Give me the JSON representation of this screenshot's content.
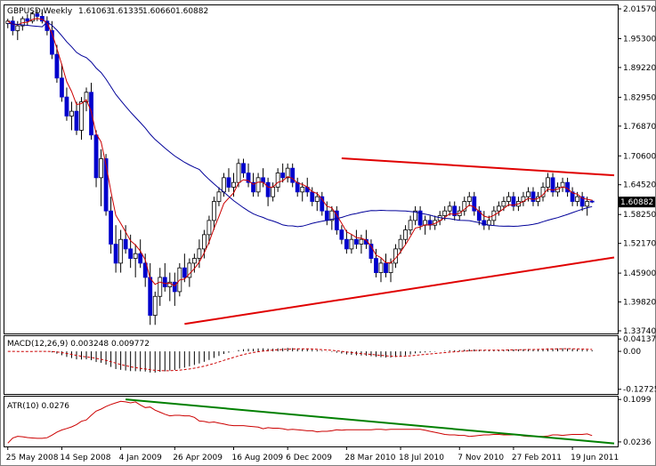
{
  "chart_data": [
    {
      "type": "candlestick",
      "header": {
        "symbol": "GBPUSD,Weekly",
        "open": "1.61063",
        "high": "1.61335",
        "low": "1.60660",
        "close": "1.60882"
      },
      "y_ticks": [
        "2.01570",
        "1.95300",
        "1.89220",
        "1.82950",
        "1.76870",
        "1.70600",
        "1.64520",
        "1.58250",
        "1.52170",
        "1.45900",
        "1.39820",
        "1.33740"
      ],
      "ylim": [
        1.3374,
        2.0157
      ],
      "current_price": "1.60882",
      "x_ticks": [
        "25 May 2008",
        "14 Sep 2008",
        "4 Jan 2009",
        "26 Apr 2009",
        "16 Aug 2009",
        "6 Dec 2009",
        "28 Mar 2010",
        "18 Jul 2010",
        "7 Nov 2010",
        "27 Feb 2011",
        "19 Jun 2011"
      ],
      "candles": [
        [
          1.985,
          1.995,
          1.975,
          1.99
        ],
        [
          1.99,
          2.0,
          1.96,
          1.97
        ],
        [
          1.97,
          1.99,
          1.95,
          1.98
        ],
        [
          1.98,
          2.0,
          1.97,
          1.995
        ],
        [
          1.995,
          2.005,
          1.98,
          1.99
        ],
        [
          1.99,
          2.01,
          1.985,
          2.005
        ],
        [
          2.005,
          2.015,
          1.99,
          2.0
        ],
        [
          2.0,
          2.015,
          1.985,
          1.99
        ],
        [
          1.99,
          2.0,
          1.96,
          1.97
        ],
        [
          1.97,
          1.99,
          1.91,
          1.92
        ],
        [
          1.92,
          1.94,
          1.86,
          1.87
        ],
        [
          1.87,
          1.9,
          1.82,
          1.83
        ],
        [
          1.83,
          1.85,
          1.78,
          1.79
        ],
        [
          1.79,
          1.82,
          1.76,
          1.8
        ],
        [
          1.8,
          1.82,
          1.75,
          1.76
        ],
        [
          1.76,
          1.83,
          1.74,
          1.82
        ],
        [
          1.82,
          1.85,
          1.8,
          1.84
        ],
        [
          1.84,
          1.86,
          1.74,
          1.75
        ],
        [
          1.75,
          1.76,
          1.64,
          1.66
        ],
        [
          1.66,
          1.72,
          1.6,
          1.7
        ],
        [
          1.7,
          1.71,
          1.58,
          1.59
        ],
        [
          1.59,
          1.62,
          1.5,
          1.52
        ],
        [
          1.52,
          1.56,
          1.46,
          1.48
        ],
        [
          1.48,
          1.55,
          1.46,
          1.53
        ],
        [
          1.53,
          1.56,
          1.5,
          1.51
        ],
        [
          1.51,
          1.54,
          1.47,
          1.49
        ],
        [
          1.49,
          1.52,
          1.45,
          1.5
        ],
        [
          1.5,
          1.53,
          1.47,
          1.48
        ],
        [
          1.48,
          1.5,
          1.43,
          1.45
        ],
        [
          1.45,
          1.48,
          1.35,
          1.37
        ],
        [
          1.37,
          1.42,
          1.35,
          1.41
        ],
        [
          1.41,
          1.47,
          1.39,
          1.45
        ],
        [
          1.45,
          1.48,
          1.42,
          1.43
        ],
        [
          1.43,
          1.46,
          1.4,
          1.44
        ],
        [
          1.44,
          1.46,
          1.39,
          1.42
        ],
        [
          1.42,
          1.48,
          1.41,
          1.47
        ],
        [
          1.47,
          1.5,
          1.44,
          1.45
        ],
        [
          1.45,
          1.49,
          1.43,
          1.48
        ],
        [
          1.48,
          1.5,
          1.46,
          1.49
        ],
        [
          1.49,
          1.53,
          1.47,
          1.51
        ],
        [
          1.51,
          1.55,
          1.49,
          1.54
        ],
        [
          1.54,
          1.58,
          1.52,
          1.57
        ],
        [
          1.57,
          1.62,
          1.55,
          1.61
        ],
        [
          1.61,
          1.64,
          1.6,
          1.63
        ],
        [
          1.63,
          1.67,
          1.62,
          1.66
        ],
        [
          1.66,
          1.68,
          1.63,
          1.64
        ],
        [
          1.64,
          1.67,
          1.62,
          1.65
        ],
        [
          1.65,
          1.7,
          1.64,
          1.69
        ],
        [
          1.69,
          1.7,
          1.66,
          1.67
        ],
        [
          1.67,
          1.69,
          1.64,
          1.65
        ],
        [
          1.65,
          1.67,
          1.62,
          1.63
        ],
        [
          1.63,
          1.67,
          1.62,
          1.66
        ],
        [
          1.66,
          1.68,
          1.64,
          1.65
        ],
        [
          1.65,
          1.66,
          1.6,
          1.62
        ],
        [
          1.62,
          1.65,
          1.61,
          1.64
        ],
        [
          1.64,
          1.68,
          1.63,
          1.67
        ],
        [
          1.67,
          1.69,
          1.65,
          1.66
        ],
        [
          1.66,
          1.69,
          1.65,
          1.68
        ],
        [
          1.68,
          1.69,
          1.64,
          1.65
        ],
        [
          1.65,
          1.66,
          1.62,
          1.63
        ],
        [
          1.63,
          1.65,
          1.61,
          1.64
        ],
        [
          1.64,
          1.66,
          1.62,
          1.63
        ],
        [
          1.63,
          1.64,
          1.6,
          1.61
        ],
        [
          1.61,
          1.63,
          1.59,
          1.62
        ],
        [
          1.62,
          1.63,
          1.58,
          1.59
        ],
        [
          1.59,
          1.61,
          1.56,
          1.57
        ],
        [
          1.57,
          1.6,
          1.55,
          1.59
        ],
        [
          1.59,
          1.6,
          1.54,
          1.55
        ],
        [
          1.55,
          1.56,
          1.52,
          1.53
        ],
        [
          1.53,
          1.55,
          1.5,
          1.51
        ],
        [
          1.51,
          1.54,
          1.5,
          1.53
        ],
        [
          1.53,
          1.55,
          1.51,
          1.52
        ],
        [
          1.52,
          1.54,
          1.5,
          1.53
        ],
        [
          1.53,
          1.55,
          1.51,
          1.52
        ],
        [
          1.52,
          1.53,
          1.48,
          1.49
        ],
        [
          1.49,
          1.51,
          1.45,
          1.46
        ],
        [
          1.46,
          1.49,
          1.44,
          1.48
        ],
        [
          1.48,
          1.5,
          1.45,
          1.46
        ],
        [
          1.46,
          1.49,
          1.44,
          1.48
        ],
        [
          1.48,
          1.52,
          1.47,
          1.51
        ],
        [
          1.51,
          1.54,
          1.5,
          1.53
        ],
        [
          1.53,
          1.56,
          1.52,
          1.55
        ],
        [
          1.55,
          1.58,
          1.54,
          1.57
        ],
        [
          1.57,
          1.6,
          1.56,
          1.59
        ],
        [
          1.59,
          1.6,
          1.55,
          1.56
        ],
        [
          1.56,
          1.58,
          1.54,
          1.57
        ],
        [
          1.57,
          1.58,
          1.55,
          1.56
        ],
        [
          1.56,
          1.58,
          1.55,
          1.57
        ],
        [
          1.57,
          1.59,
          1.56,
          1.58
        ],
        [
          1.58,
          1.6,
          1.57,
          1.59
        ],
        [
          1.59,
          1.61,
          1.58,
          1.6
        ],
        [
          1.6,
          1.61,
          1.57,
          1.58
        ],
        [
          1.58,
          1.6,
          1.57,
          1.59
        ],
        [
          1.59,
          1.62,
          1.58,
          1.61
        ],
        [
          1.61,
          1.63,
          1.6,
          1.62
        ],
        [
          1.62,
          1.63,
          1.58,
          1.59
        ],
        [
          1.59,
          1.6,
          1.56,
          1.57
        ],
        [
          1.57,
          1.59,
          1.55,
          1.56
        ],
        [
          1.56,
          1.58,
          1.55,
          1.57
        ],
        [
          1.57,
          1.6,
          1.56,
          1.59
        ],
        [
          1.59,
          1.61,
          1.58,
          1.6
        ],
        [
          1.6,
          1.62,
          1.59,
          1.61
        ],
        [
          1.61,
          1.63,
          1.6,
          1.62
        ],
        [
          1.62,
          1.63,
          1.59,
          1.6
        ],
        [
          1.6,
          1.62,
          1.59,
          1.61
        ],
        [
          1.61,
          1.63,
          1.6,
          1.62
        ],
        [
          1.62,
          1.64,
          1.61,
          1.63
        ],
        [
          1.63,
          1.64,
          1.6,
          1.61
        ],
        [
          1.61,
          1.63,
          1.6,
          1.62
        ],
        [
          1.62,
          1.65,
          1.61,
          1.64
        ],
        [
          1.64,
          1.67,
          1.63,
          1.66
        ],
        [
          1.66,
          1.67,
          1.62,
          1.63
        ],
        [
          1.63,
          1.65,
          1.62,
          1.64
        ],
        [
          1.64,
          1.66,
          1.63,
          1.65
        ],
        [
          1.65,
          1.66,
          1.62,
          1.63
        ],
        [
          1.63,
          1.64,
          1.6,
          1.61
        ],
        [
          1.61,
          1.63,
          1.6,
          1.62
        ],
        [
          1.62,
          1.63,
          1.59,
          1.6
        ],
        [
          1.6,
          1.62,
          1.58,
          1.61
        ],
        [
          1.61063,
          1.61335,
          1.6066,
          1.60882
        ]
      ],
      "moving_averages": [
        {
          "color": "#cc0000",
          "type": "fast"
        },
        {
          "color": "#000099",
          "type": "slow"
        }
      ],
      "trendlines": [
        {
          "color": "#e00000",
          "points": [
            [
              1.701,
              1.665
            ]
          ],
          "role": "resistance"
        },
        {
          "color": "#e00000",
          "role": "support"
        }
      ]
    },
    {
      "type": "bar",
      "label": "MACD(12,26,9) 0.003248 0.009772",
      "y_ticks": [
        "0.041379",
        "0.00",
        "-0.12725"
      ],
      "ylim": [
        -0.14,
        0.045
      ]
    },
    {
      "type": "line",
      "label": "ATR(10) 0.0276",
      "y_ticks": [
        "0.1099",
        "0.0236"
      ],
      "ylim": [
        0.018,
        0.112
      ],
      "series_color": "#cc0000",
      "trendline_color": "#008000"
    }
  ]
}
